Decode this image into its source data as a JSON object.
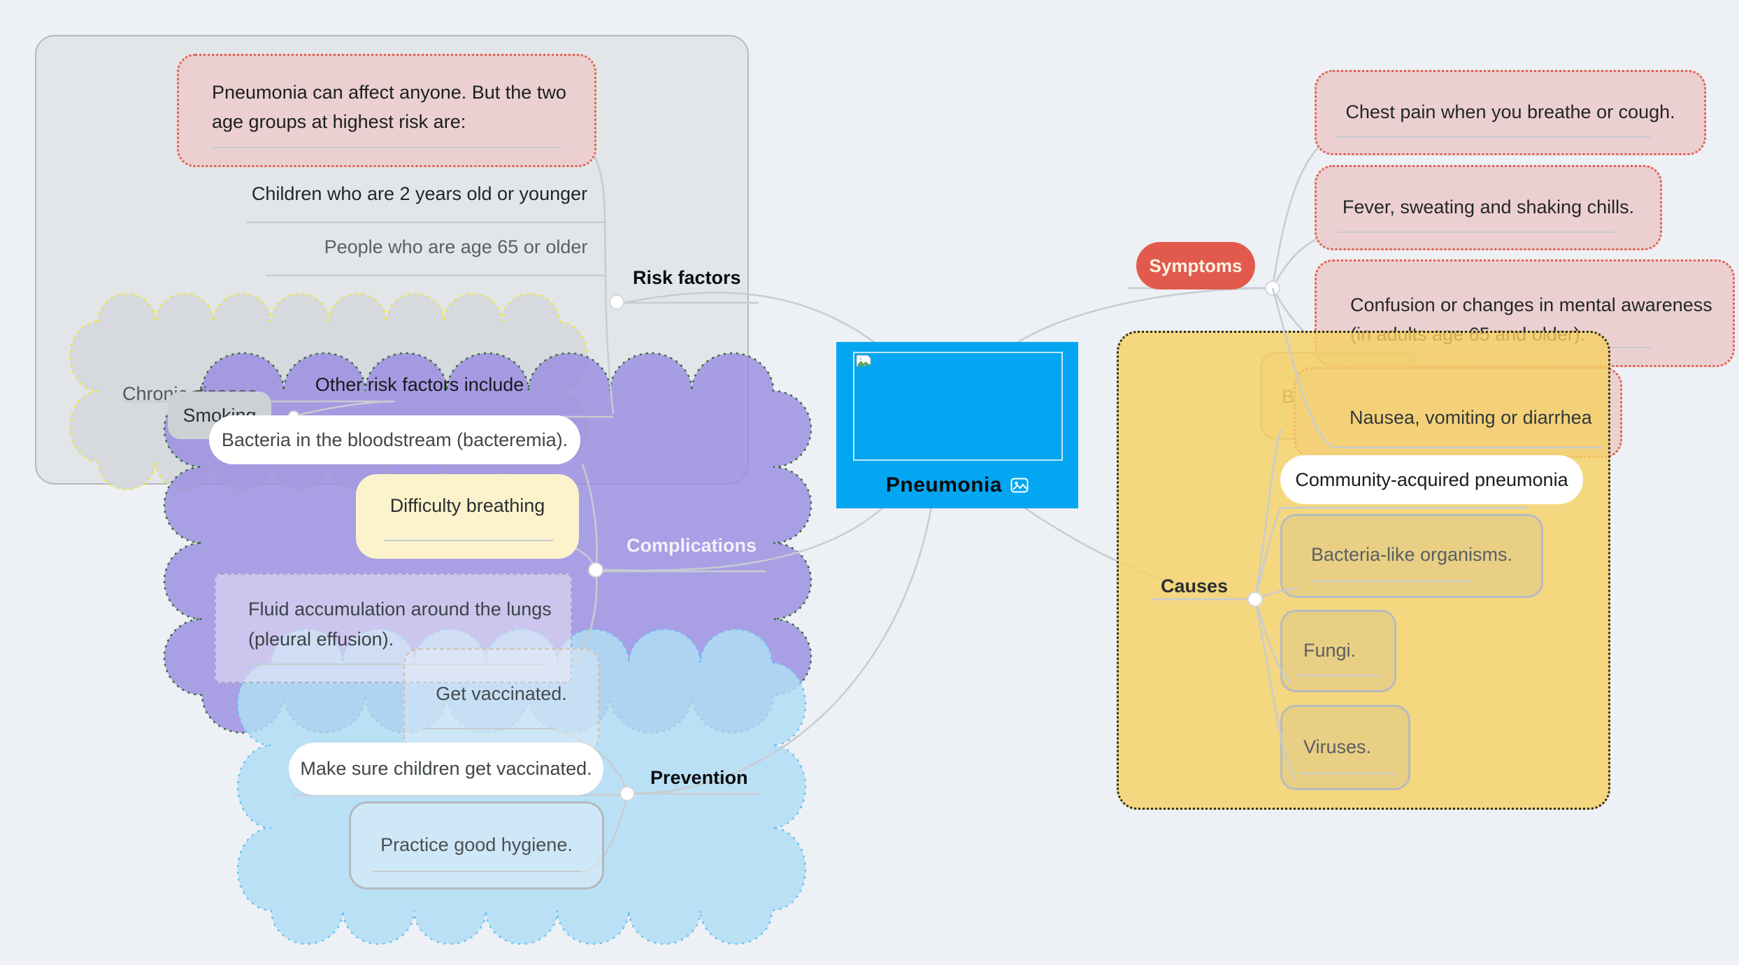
{
  "app": {
    "type": "mind-map",
    "background": "#edf1f5"
  },
  "root": {
    "title": "Pneumonia",
    "node_color": "#04a6f1",
    "image_icon": "image-placeholder-icon"
  },
  "risk_factors": {
    "label": "Risk factors",
    "note": "Pneumonia can affect anyone. But the two age groups at highest risk are:",
    "children": [
      "Children who are 2 years old or younger",
      "People who are age 65 or older"
    ],
    "other": {
      "label": "Other risk factors include",
      "items": [
        "Chronic disease.",
        "Smoking"
      ]
    }
  },
  "symptoms": {
    "label": "Symptoms",
    "pill_color": "#e25a4e",
    "items": [
      "Chest pain when you breathe or cough.",
      "Fever, sweating and shaking chills.",
      "Confusion or changes in mental awareness (in adults age 65 and older).",
      "Nausea, vomiting or diarrhea"
    ]
  },
  "causes": {
    "label": "Causes",
    "boundary_color": "#f6d161",
    "items": [
      "Bacteria.",
      "Community-acquired pneumonia",
      "Bacteria-like organisms.",
      "Fungi.",
      "Viruses."
    ]
  },
  "complications": {
    "label": "Complications",
    "cloud_color": "#9a8ce2",
    "items": [
      "Bacteria in the bloodstream (bacteremia).",
      "Difficulty breathing",
      "Fluid accumulation around the lungs (pleural effusion)."
    ]
  },
  "prevention": {
    "label": "Prevention",
    "cloud_color": "#b0ddf5",
    "items": [
      "Get vaccinated.",
      "Make sure children get vaccinated.",
      "Practice good hygiene."
    ]
  },
  "colors": {
    "pink_fill": "#ecd0d1",
    "red_dotted_border": "#e0614f",
    "yellow_boundary": "#f6d161",
    "boundary_dot_border": "#2b2b2b",
    "gray_container": "#e3e6e8",
    "cloud_yellow_border": "#f0e53e",
    "cloud_green_border": "#2f6e36",
    "cloud_blue_border": "#63c2f0",
    "connector_gray": "#c7ccd1",
    "node_blue": "#04a6f1",
    "salmon": "#e25a4e"
  }
}
